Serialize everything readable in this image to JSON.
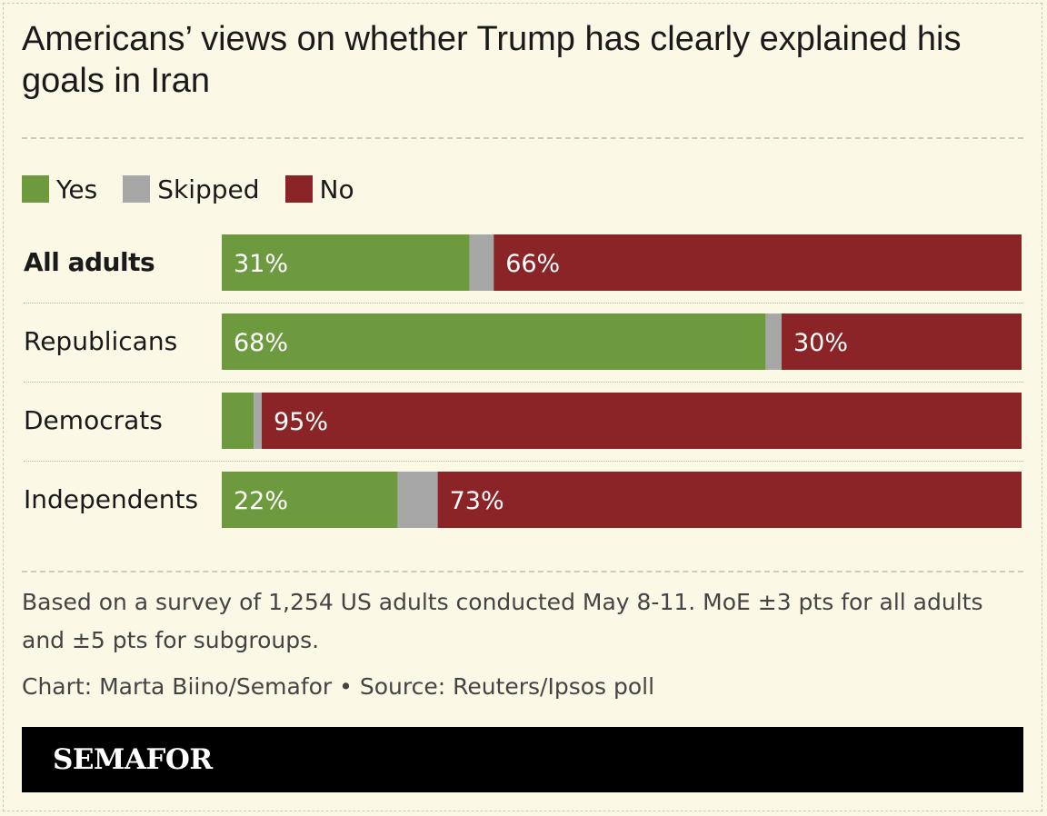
{
  "chart_data": {
    "type": "bar",
    "orientation": "horizontal",
    "stacked": true,
    "title": "Americans’ views on whether Trump has clearly explained his goals in Iran",
    "categories": [
      "All adults",
      "Republicans",
      "Democrats",
      "Independents"
    ],
    "series": [
      {
        "name": "Yes",
        "color": "#6e9a3f",
        "values": [
          31,
          68,
          4,
          22
        ],
        "labels": [
          "31%",
          "68%",
          "",
          "22%"
        ]
      },
      {
        "name": "Skipped",
        "color": "#a7a7a7",
        "values": [
          3,
          2,
          1,
          5
        ],
        "labels": [
          "",
          "",
          "",
          ""
        ]
      },
      {
        "name": "No",
        "color": "#8b2427",
        "values": [
          66,
          30,
          95,
          73
        ],
        "labels": [
          "66%",
          "30%",
          "95%",
          "73%"
        ]
      }
    ],
    "xlim": [
      0,
      100
    ],
    "legend": "top-left",
    "grid": false
  },
  "note": "Based on a survey of 1,254 US adults conducted May 8-11. MoE ±3 pts for all adults and ±5 pts for subgroups.",
  "credit": "Chart: Marta Biino/Semafor • Source: Reuters/Ipsos poll",
  "brand": "SEMAFOR"
}
